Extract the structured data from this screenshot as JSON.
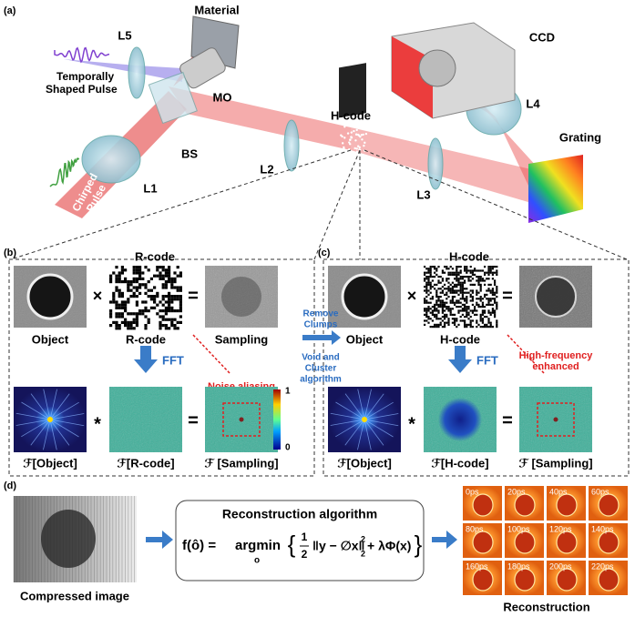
{
  "panel_a": {
    "label": "(a)",
    "material": "Material",
    "l5": "L5",
    "pulse_top": [
      "Temporally",
      "Shaped Pulse"
    ],
    "mo": "MO",
    "bs": "BS",
    "l1": "L1",
    "chirped": [
      "Chirped",
      "Pulse"
    ],
    "l2": "L2",
    "hcode": "H-code",
    "l3": "L3",
    "ccd": "CCD",
    "l4": "L4",
    "grating": "Grating"
  },
  "panel_b": {
    "label": "(b)",
    "title": "R-code",
    "times": "×",
    "equals": "=",
    "labels": [
      "Object",
      "R-code",
      "Sampling"
    ],
    "fft": "FFT",
    "annotation": [
      "Noise aliasing"
    ],
    "colorbar": [
      "1",
      "0"
    ],
    "star": "*",
    "equals2": "=",
    "fft_labels": [
      "ℱ[Object]",
      "ℱ[R-code]",
      "ℱ [Sampling]"
    ]
  },
  "middle": {
    "top": [
      "Remove",
      "Clumps"
    ],
    "bottom": [
      "Void and",
      "Cluster",
      "algorithm"
    ]
  },
  "panel_c": {
    "label": "(c)",
    "title": "H-code",
    "times": "×",
    "equals": "=",
    "labels": [
      "Object",
      "H-code",
      ""
    ],
    "fft": "FFT",
    "annotation": [
      "High-frequency",
      "enhanced"
    ],
    "star": "*",
    "equals2": "=",
    "fft_labels": [
      "ℱ[Object]",
      "ℱ[H-code]",
      "ℱ [Sampling]"
    ]
  },
  "panel_d": {
    "label": "(d)",
    "compressed": "Compressed image",
    "algorithm_title": "Reconstruction algorithm",
    "formula": {
      "lhs": "f(ô) =",
      "op": "argmin",
      "op_sub": "o",
      "open": "{",
      "num": "1",
      "den": "2",
      "norm": "‖y − ∅x‖",
      "norm_sup": "2",
      "norm_sub": "2",
      "rest": "+ λΦ(x)",
      "close": "}"
    },
    "frames": [
      "0ps",
      "20ps",
      "40ps",
      "60ps",
      "80ps",
      "100ps",
      "120ps",
      "140ps",
      "160ps",
      "180ps",
      "200ps",
      "220ps"
    ],
    "reconstruction": "Reconstruction"
  }
}
